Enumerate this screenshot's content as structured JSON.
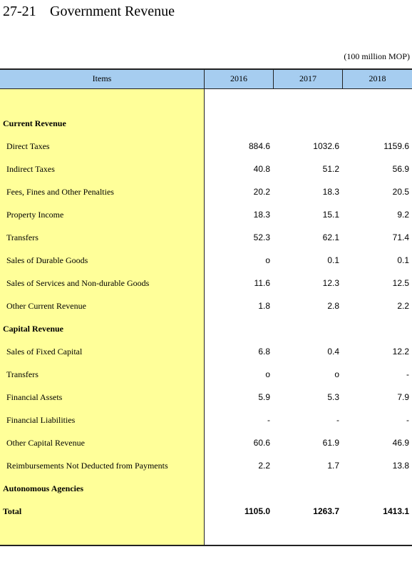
{
  "header": {
    "number": "27-21",
    "title": "Government Revenue",
    "unit": "(100 million MOP)"
  },
  "table": {
    "columns": [
      "Items",
      "2016",
      "2017",
      "2018"
    ],
    "rows": [
      {
        "label": "Current Revenue",
        "values": [],
        "style": "bold"
      },
      {
        "label": "Direct Taxes",
        "values": [
          "884.6",
          "1032.6",
          "1159.6"
        ]
      },
      {
        "label": "Indirect Taxes",
        "values": [
          "40.8",
          "51.2",
          "56.9"
        ]
      },
      {
        "label": "Fees, Fines and Other Penalties",
        "values": [
          "20.2",
          "18.3",
          "20.5"
        ]
      },
      {
        "label": "Property Income",
        "values": [
          "18.3",
          "15.1",
          "9.2"
        ]
      },
      {
        "label": "Transfers",
        "values": [
          "52.3",
          "62.1",
          "71.4"
        ]
      },
      {
        "label": "Sales of Durable Goods",
        "values": [
          "o",
          "0.1",
          "0.1"
        ]
      },
      {
        "label": "Sales of Services and Non-durable Goods",
        "values": [
          "11.6",
          "12.3",
          "12.5"
        ]
      },
      {
        "label": "Other Current Revenue",
        "values": [
          "1.8",
          "2.8",
          "2.2"
        ]
      },
      {
        "label": "Capital Revenue",
        "values": [],
        "style": "bold"
      },
      {
        "label": "Sales of Fixed Capital",
        "values": [
          "6.8",
          "0.4",
          "12.2"
        ]
      },
      {
        "label": "Transfers",
        "values": [
          "o",
          "o",
          "-"
        ]
      },
      {
        "label": "Financial Assets",
        "values": [
          "5.9",
          "5.3",
          "7.9"
        ]
      },
      {
        "label": "Financial Liabilities",
        "values": [
          "-",
          "-",
          "-"
        ]
      },
      {
        "label": "Other Capital Revenue",
        "values": [
          "60.6",
          "61.9",
          "46.9"
        ]
      },
      {
        "label": "Reimbursements Not Deducted from Payments",
        "values": [
          "2.2",
          "1.7",
          "13.8"
        ]
      },
      {
        "label": "Autonomous Agencies",
        "values": [],
        "style": "bold"
      },
      {
        "label": "Total",
        "values": [
          "1105.0",
          "1263.7",
          "1413.1"
        ],
        "style": "bold"
      }
    ]
  }
}
